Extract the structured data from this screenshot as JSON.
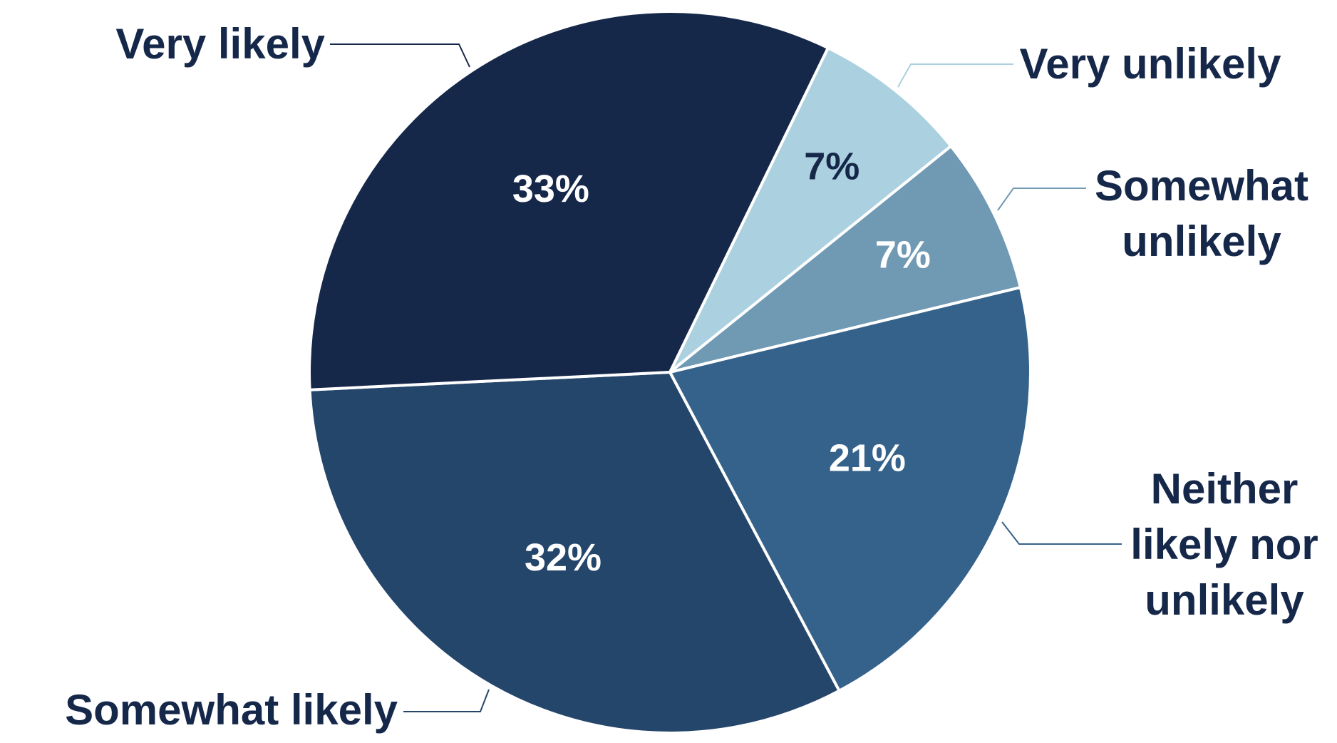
{
  "chart_data": {
    "type": "pie",
    "categories": [
      "Very unlikely",
      "Somewhat unlikely",
      "Neither likely nor unlikely",
      "Somewhat likely",
      "Very likely"
    ],
    "values": [
      7,
      7,
      21,
      32,
      33
    ],
    "value_labels": [
      "7%",
      "7%",
      "21%",
      "32%",
      "33%"
    ],
    "colors": [
      "#abd0df",
      "#7099b4",
      "#35628a",
      "#24466b",
      "#16284a"
    ]
  }
}
